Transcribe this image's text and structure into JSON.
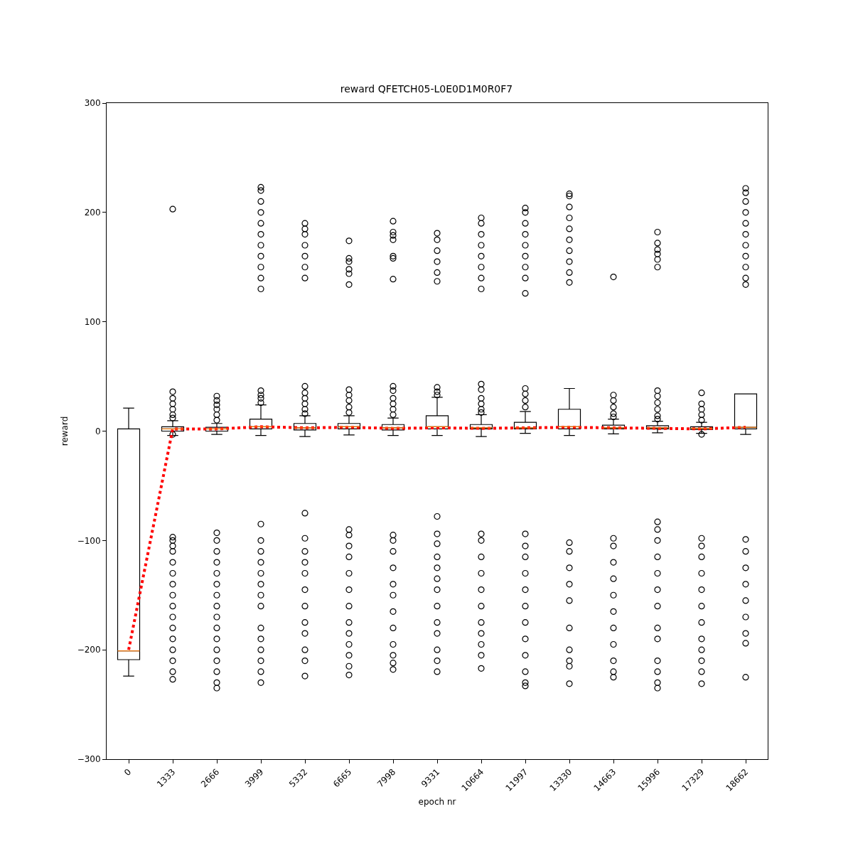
{
  "chart_data": {
    "type": "box",
    "title": "reward QFETCH05-L0E0D1M0R0F7",
    "xlabel": "epoch nr",
    "ylabel": "reward",
    "categories": [
      "0",
      "1333",
      "2666",
      "3999",
      "5332",
      "6665",
      "7998",
      "9331",
      "10664",
      "11997",
      "13330",
      "14663",
      "15996",
      "17329",
      "18662"
    ],
    "ylim": [
      -300,
      300
    ],
    "yticks": [
      {
        "value": -300,
        "label": "−300"
      },
      {
        "value": -200,
        "label": "−200"
      },
      {
        "value": -100,
        "label": "−100"
      },
      0,
      100,
      200,
      300
    ],
    "grid": false,
    "series": [
      {
        "color": "#000000",
        "boxes": [
          {
            "low": -224,
            "q1": -209,
            "median": -201,
            "q3": 2,
            "high": 21
          },
          {
            "low": -4,
            "q1": 0,
            "median": 2,
            "q3": 4,
            "high": 9.5,
            "outliers": [
              203,
              36,
              30,
              25,
              20,
              15,
              12,
              -3,
              -97,
              -100,
              -105,
              -110,
              -120,
              -130,
              -140,
              -150,
              -160,
              -170,
              -180,
              -190,
              -200,
              -210,
              -220,
              -227
            ]
          },
          {
            "low": -3,
            "q1": 0,
            "median": 2,
            "q3": 3.5,
            "high": 7,
            "outliers": [
              32,
              28,
              24,
              20,
              15,
              10,
              -93,
              -100,
              -110,
              -120,
              -130,
              -140,
              -150,
              -160,
              -170,
              -180,
              -190,
              -200,
              -210,
              -220,
              -230,
              -235
            ]
          },
          {
            "low": -4,
            "q1": 2,
            "median": 4,
            "q3": 11,
            "high": 24,
            "outliers": [
              223,
              220,
              210,
              200,
              190,
              180,
              170,
              160,
              150,
              140,
              130,
              37,
              33,
              30,
              26,
              -85,
              -100,
              -110,
              -120,
              -130,
              -140,
              -150,
              -160,
              -180,
              -190,
              -200,
              -210,
              -220,
              -230
            ]
          },
          {
            "low": -5,
            "q1": 1,
            "median": 3,
            "q3": 7,
            "high": 14,
            "outliers": [
              190,
              185,
              180,
              170,
              160,
              150,
              140,
              41,
              35,
              30,
              25,
              20,
              16,
              -75,
              -98,
              -110,
              -120,
              -130,
              -145,
              -160,
              -175,
              -185,
              -200,
              -210,
              -224
            ]
          },
          {
            "low": -3.5,
            "q1": 2,
            "median": 4,
            "q3": 7,
            "high": 14,
            "outliers": [
              174,
              158,
              155,
              148,
              144,
              134,
              38,
              33,
              28,
              22,
              17,
              -90,
              -95,
              -105,
              -115,
              -130,
              -145,
              -160,
              -175,
              -185,
              -195,
              -205,
              -215,
              -223
            ]
          },
          {
            "low": -4,
            "q1": 1,
            "median": 3,
            "q3": 6,
            "high": 12,
            "outliers": [
              192,
              182,
              179,
              175,
              160,
              158,
              139,
              41,
              37,
              30,
              25,
              20,
              15,
              -95,
              -100,
              -110,
              -125,
              -140,
              -150,
              -165,
              -180,
              -195,
              -205,
              -212,
              -218
            ]
          },
          {
            "low": -4,
            "q1": 2,
            "median": 4,
            "q3": 14,
            "high": 31,
            "outliers": [
              181,
              175,
              165,
              155,
              145,
              137,
              40,
              36,
              33,
              -78,
              -94,
              -103,
              -115,
              -125,
              -135,
              -145,
              -160,
              -175,
              -185,
              -200,
              -210,
              -220
            ]
          },
          {
            "low": -5,
            "q1": 2,
            "median": 3,
            "q3": 6,
            "high": 15,
            "outliers": [
              195,
              190,
              180,
              170,
              160,
              150,
              140,
              130,
              43,
              38,
              30,
              25,
              20,
              17,
              -94,
              -100,
              -115,
              -130,
              -145,
              -160,
              -175,
              -185,
              -195,
              -205,
              -217
            ]
          },
          {
            "low": -2,
            "q1": 2,
            "median": 3,
            "q3": 8,
            "high": 18,
            "outliers": [
              204,
              200,
              190,
              180,
              170,
              160,
              150,
              140,
              126,
              39,
              34,
              28,
              22,
              -94,
              -105,
              -115,
              -130,
              -145,
              -160,
              -175,
              -190,
              -205,
              -220,
              -230,
              -233
            ]
          },
          {
            "low": -4,
            "q1": 2,
            "median": 4,
            "q3": 20,
            "high": 39,
            "outliers": [
              217,
              215,
              205,
              195,
              185,
              175,
              165,
              155,
              145,
              136,
              -102,
              -110,
              -125,
              -140,
              -155,
              -180,
              -200,
              -210,
              -215,
              -231
            ]
          },
          {
            "low": -2.5,
            "q1": 2,
            "median": 3,
            "q3": 5.5,
            "high": 11,
            "outliers": [
              141,
              33,
              28,
              22,
              16,
              13,
              -98,
              -105,
              -120,
              -135,
              -150,
              -165,
              -180,
              -195,
              -210,
              -220,
              -225
            ]
          },
          {
            "low": -1.5,
            "q1": 2,
            "median": 3,
            "q3": 5,
            "high": 9,
            "outliers": [
              182,
              172,
              166,
              162,
              157,
              150,
              37,
              32,
              26,
              20,
              14,
              11,
              -83,
              -90,
              -100,
              -115,
              -130,
              -145,
              -160,
              -180,
              -190,
              -210,
              -220,
              -230,
              -235
            ]
          },
          {
            "low": -2,
            "q1": 1.5,
            "median": 2.5,
            "q3": 4,
            "high": 8,
            "outliers": [
              35,
              25,
              20,
              15,
              10,
              -3,
              -98,
              -105,
              -115,
              -130,
              -145,
              -160,
              -175,
              -190,
              -200,
              -210,
              -220,
              -231
            ]
          },
          {
            "low": -3,
            "q1": 2,
            "median": 3.5,
            "q3": 34,
            "high": 34,
            "outliers": [
              222,
              218,
              210,
              200,
              190,
              180,
              170,
              160,
              150,
              140,
              134,
              -99,
              -110,
              -125,
              -140,
              -155,
              -170,
              -185,
              -194,
              -225
            ]
          }
        ]
      },
      {
        "type": "line",
        "color": "#ff0000",
        "line_style": "dotted",
        "marker": "none",
        "values": [
          -200,
          2,
          2,
          4,
          3,
          3.5,
          2.5,
          3,
          2.5,
          3,
          3.5,
          3,
          2.5,
          2,
          3.5
        ]
      }
    ]
  }
}
